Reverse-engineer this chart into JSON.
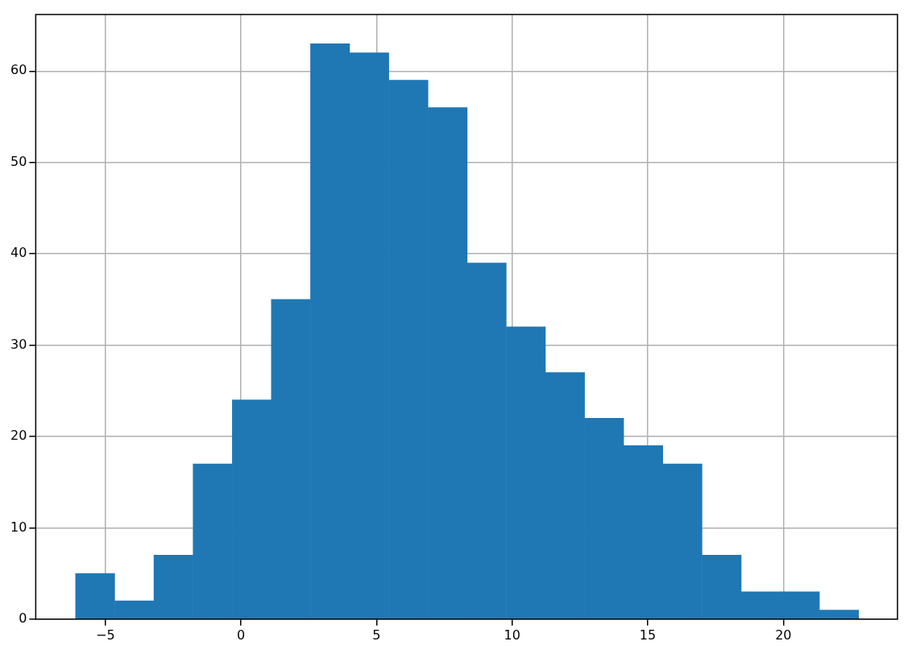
{
  "chart_data": {
    "type": "histogram",
    "color": "#1f77b4",
    "bins": [
      -6.1,
      -4.66,
      -3.21,
      -1.77,
      -0.32,
      1.12,
      2.56,
      4.01,
      5.45,
      6.9,
      8.34,
      9.78,
      11.23,
      12.67,
      14.11,
      15.56,
      17.0,
      18.45,
      19.89,
      21.33,
      22.78
    ],
    "values": [
      5,
      2,
      7,
      17,
      24,
      35,
      63,
      62,
      59,
      56,
      39,
      32,
      27,
      22,
      19,
      17,
      7,
      3,
      3,
      1
    ],
    "xlim": [
      -7.57,
      24.21
    ],
    "xticks": [
      {
        "value": -5,
        "label": "−5"
      },
      0,
      5,
      10,
      15,
      20
    ],
    "ylim": [
      0,
      66.2
    ],
    "yticks": [
      0,
      10,
      20,
      30,
      40,
      50,
      60
    ],
    "grid": true
  }
}
